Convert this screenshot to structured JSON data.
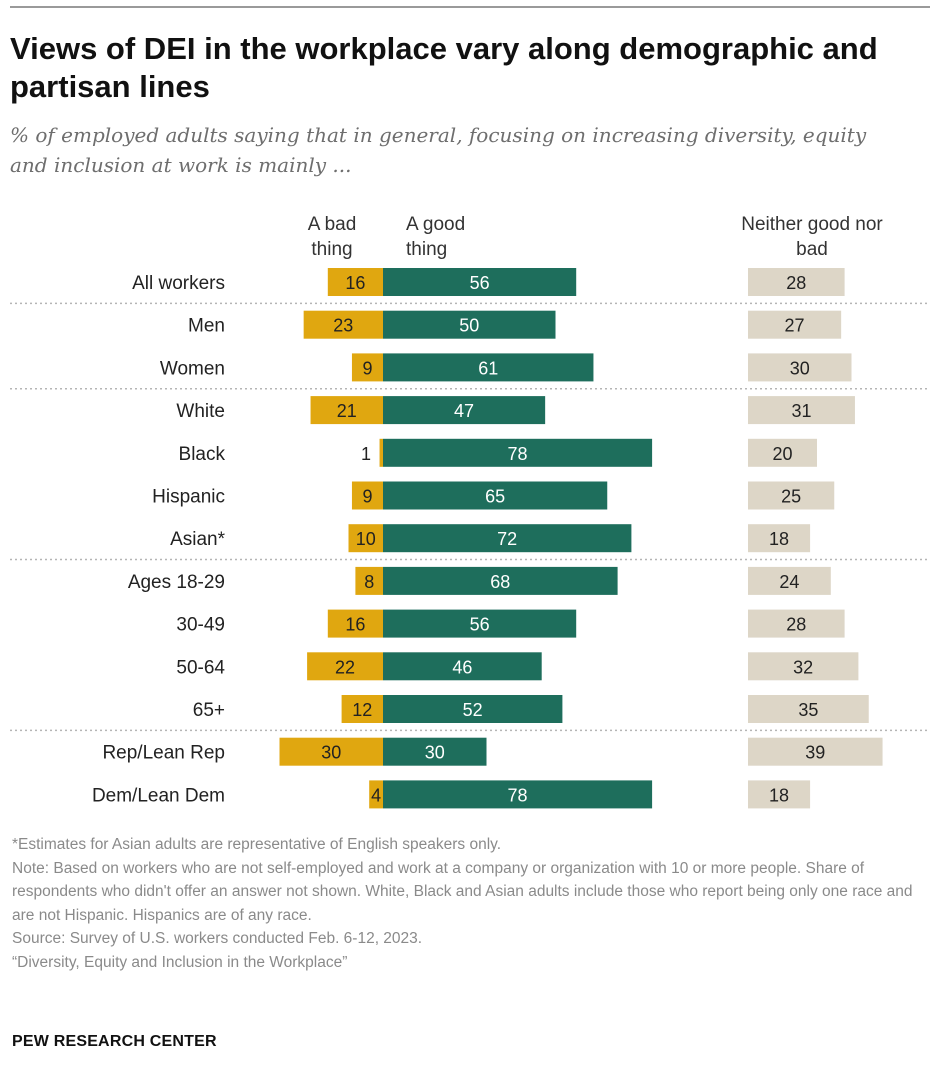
{
  "title": "Views of DEI in the workplace vary along demographic and partisan lines",
  "subtitle": "% of employed adults saying that in general, focusing on increasing diversity, equity and inclusion at work is mainly ...",
  "columns": {
    "bad": "A bad thing",
    "good": "A good thing",
    "neither": "Neither good nor bad"
  },
  "colors": {
    "bad": "#e0a710",
    "good": "#1e6e5c",
    "neither": "#ddd6c7",
    "divider": "#b5b5b5"
  },
  "chart_data": {
    "type": "bar",
    "orientation": "horizontal",
    "stacked_diverging": true,
    "categories": [
      "All workers",
      "Men",
      "Women",
      "White",
      "Black",
      "Hispanic",
      "Asian*",
      "Ages 18-29",
      "30-49",
      "50-64",
      "65+",
      "Rep/Lean Rep",
      "Dem/Lean Dem"
    ],
    "groups": [
      [
        0
      ],
      [
        1,
        2
      ],
      [
        3,
        4,
        5,
        6
      ],
      [
        7,
        8,
        9,
        10
      ],
      [
        11,
        12
      ]
    ],
    "series": [
      {
        "name": "A bad thing",
        "values": [
          16,
          23,
          9,
          21,
          1,
          9,
          10,
          8,
          16,
          22,
          12,
          30,
          4
        ]
      },
      {
        "name": "A good thing",
        "values": [
          56,
          50,
          61,
          47,
          78,
          65,
          72,
          68,
          56,
          46,
          52,
          30,
          78
        ]
      },
      {
        "name": "Neither good nor bad",
        "values": [
          28,
          27,
          30,
          31,
          20,
          25,
          18,
          24,
          28,
          32,
          35,
          39,
          18
        ]
      }
    ]
  },
  "notes": [
    "*Estimates for Asian adults are representative of English speakers only.",
    "Note: Based on workers who are not self-employed and work at a company or organization with 10 or more people. Share of respondents who didn't offer an answer not shown. White, Black and Asian adults include those who report being only one race and are not Hispanic. Hispanics are of any race.",
    "Source: Survey of U.S. workers conducted Feb. 6-12, 2023.",
    "“Diversity, Equity and Inclusion in the Workplace”"
  ],
  "brand": "PEW RESEARCH CENTER"
}
